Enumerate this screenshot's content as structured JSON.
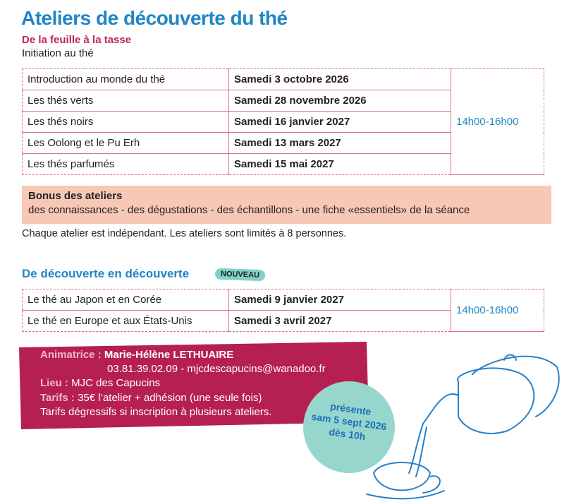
{
  "title": "Ateliers de découverte du thé",
  "section1": {
    "subtitle": "De la feuille à la tasse",
    "intro": "Initiation au thé",
    "rows": [
      [
        "Introduction au monde du thé",
        "Samedi 3 octobre 2026"
      ],
      [
        "Les thés verts",
        "Samedi 28 novembre 2026"
      ],
      [
        "Les thés noirs",
        "Samedi 16 janvier 2027"
      ],
      [
        "Les Oolong et le Pu Erh",
        "Samedi 13 mars 2027"
      ],
      [
        "Les thés parfumés",
        "Samedi 15 mai 2027"
      ]
    ],
    "time": "14h00-16h00"
  },
  "bonus": {
    "title": "Bonus des ateliers",
    "text": "des connaissances - des dégustations - des échantillons - une fiche «essentiels» de la séance"
  },
  "note": "Chaque atelier est indépendant. Les ateliers sont limités à 8 personnes.",
  "section2": {
    "title": "De découverte en découverte",
    "badge": "NOUVEAU",
    "rows": [
      [
        "Le thé au Japon et en Corée",
        "Samedi 9 janvier 2027"
      ],
      [
        "Le thé en Europe et aux États-Unis",
        "Samedi 3 avril 2027"
      ]
    ],
    "time": "14h00-16h00"
  },
  "contact": {
    "animatrice_label": "Animatrice :",
    "animatrice": "Marie-Hélène LETHUAIRE",
    "details": "03.81.39.02.09 - mjcdescapucins@wanadoo.fr",
    "lieu_label": "Lieu :",
    "lieu": "MJC des Capucins",
    "tarifs_label": "Tarifs :",
    "tarifs": "35€ l’atelier + adhésion (une seule fois)",
    "extra": "Tarifs dégressifs si inscription à plusieurs ateliers."
  },
  "badge_circle": {
    "lines": [
      "présente",
      "sam 5 sept 2026",
      "dès 10h"
    ]
  }
}
